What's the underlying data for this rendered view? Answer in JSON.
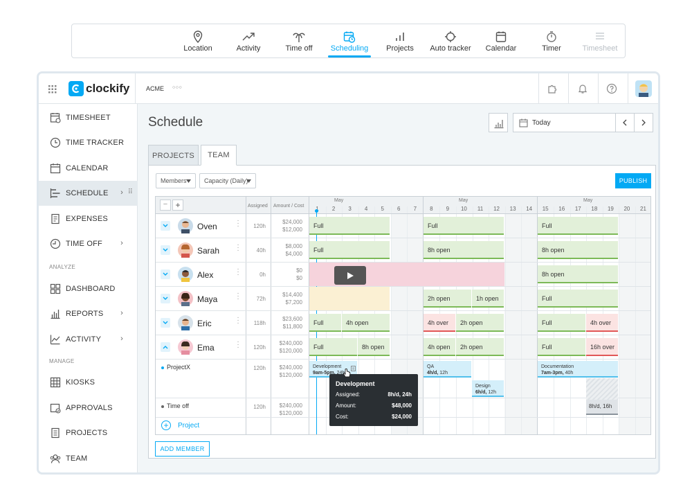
{
  "feature_bar": {
    "items": [
      {
        "label": "Location",
        "icon": "location-pin-icon"
      },
      {
        "label": "Activity",
        "icon": "trend-up-icon"
      },
      {
        "label": "Time off",
        "icon": "palm-tree-icon"
      },
      {
        "label": "Scheduling",
        "icon": "calendar-clock-icon",
        "active": true
      },
      {
        "label": "Projects",
        "icon": "bar-chart-icon"
      },
      {
        "label": "Auto tracker",
        "icon": "crosshair-icon"
      },
      {
        "label": "Calendar",
        "icon": "calendar-icon"
      },
      {
        "label": "Timer",
        "icon": "stopwatch-icon"
      },
      {
        "label": "Timesheet",
        "icon": "list-icon",
        "disabled": true
      }
    ]
  },
  "topbar": {
    "brand": "clockify",
    "workspace": "ACME",
    "workspace_more": "○○○"
  },
  "sidebar": {
    "items": [
      {
        "label": "TIMESHEET"
      },
      {
        "label": "TIME TRACKER"
      },
      {
        "label": "CALENDAR"
      },
      {
        "label": "SCHEDULE",
        "chevron": "›",
        "drag": "⠿"
      },
      {
        "label": "EXPENSES"
      },
      {
        "label": "TIME OFF",
        "chevron": "›"
      }
    ],
    "analyze_label": "ANALYZE",
    "analyze_items": [
      {
        "label": "DASHBOARD"
      },
      {
        "label": "REPORTS",
        "chevron": "›"
      },
      {
        "label": "ACTIVITY",
        "chevron": "›"
      }
    ],
    "manage_label": "MANAGE",
    "manage_items": [
      {
        "label": "KIOSKS"
      },
      {
        "label": "APPROVALS"
      },
      {
        "label": "PROJECTS"
      },
      {
        "label": "TEAM"
      }
    ]
  },
  "main": {
    "title": "Schedule",
    "date_label": "Today",
    "tabs": [
      {
        "label": "PROJECTS"
      },
      {
        "label": "TEAM",
        "active": true
      }
    ],
    "members_filter": "Members",
    "capacity_filter": "Capacity (Daily)",
    "publish_label": "PUBLISH",
    "add_member_label": "ADD MEMBER",
    "header": {
      "assigned": "Assigned",
      "amount_cost": "Amount / Cost",
      "months": [
        "May",
        "May",
        "May"
      ],
      "days": [
        "1",
        "2",
        "3",
        "4",
        "5",
        "6",
        "7",
        "8",
        "9",
        "10",
        "11",
        "12",
        "13",
        "14",
        "15",
        "16",
        "17",
        "18",
        "19",
        "20",
        "21"
      ]
    },
    "members": [
      {
        "name": "Oven",
        "assigned": "120h",
        "amount": "$24,000",
        "cost": "$12,000",
        "bars": [
          "Full",
          "Full",
          "Full"
        ]
      },
      {
        "name": "Sarah",
        "assigned": "40h",
        "amount": "$8,000",
        "cost": "$4,000",
        "bars": [
          "Full",
          "8h open",
          "8h open"
        ]
      },
      {
        "name": "Alex",
        "assigned": "0h",
        "amount": "$0",
        "cost": "$0",
        "bars": [
          "8h open"
        ]
      },
      {
        "name": "Maya",
        "assigned": "72h",
        "amount": "$14,400",
        "cost": "$7,200",
        "bars": [
          "2h open",
          "1h open",
          "Full"
        ]
      },
      {
        "name": "Eric",
        "assigned": "118h",
        "amount": "$23,600",
        "cost": "$11,800",
        "bars": [
          "Full",
          "4h open",
          "4h over",
          "2h open",
          "Full",
          "4h over"
        ]
      },
      {
        "name": "Ema",
        "assigned": "120h",
        "amount": "$240,000",
        "cost": "$120,000",
        "bars": [
          "Full",
          "8h open",
          "4h open",
          "2h open",
          "Full",
          "16h over"
        ]
      }
    ],
    "projectx": {
      "name": "ProjectX",
      "assigned": "120h",
      "amount": "$240,000",
      "cost": "$120,000",
      "tasks": [
        {
          "title": "Development",
          "detail_bold": "9am-5pm,",
          "detail": " 24h"
        },
        {
          "title": "QA",
          "detail_bold": "4h/d,",
          "detail": " 12h"
        },
        {
          "title": "Design",
          "detail_bold": "6h/d,",
          "detail": " 12h"
        },
        {
          "title": "Documentation",
          "detail_bold": "7am-3pm,",
          "detail": " 40h"
        }
      ]
    },
    "timeoff": {
      "name": "Time off",
      "assigned": "120h",
      "amount": "$240,000",
      "cost": "$120,000",
      "bar": "8h/d, 16h"
    },
    "add_project_label": "Project"
  },
  "tooltip": {
    "title": "Development",
    "rows": [
      {
        "label": "Assigned:",
        "value": "8h/d, 24h"
      },
      {
        "label": "Amount:",
        "value": "$48,000"
      },
      {
        "label": "Cost:",
        "value": "$24,000"
      }
    ]
  },
  "colors": {
    "accent": "#03a9f4",
    "green": "#7cb957",
    "red": "#e15757",
    "blue": "#51c0ec"
  }
}
